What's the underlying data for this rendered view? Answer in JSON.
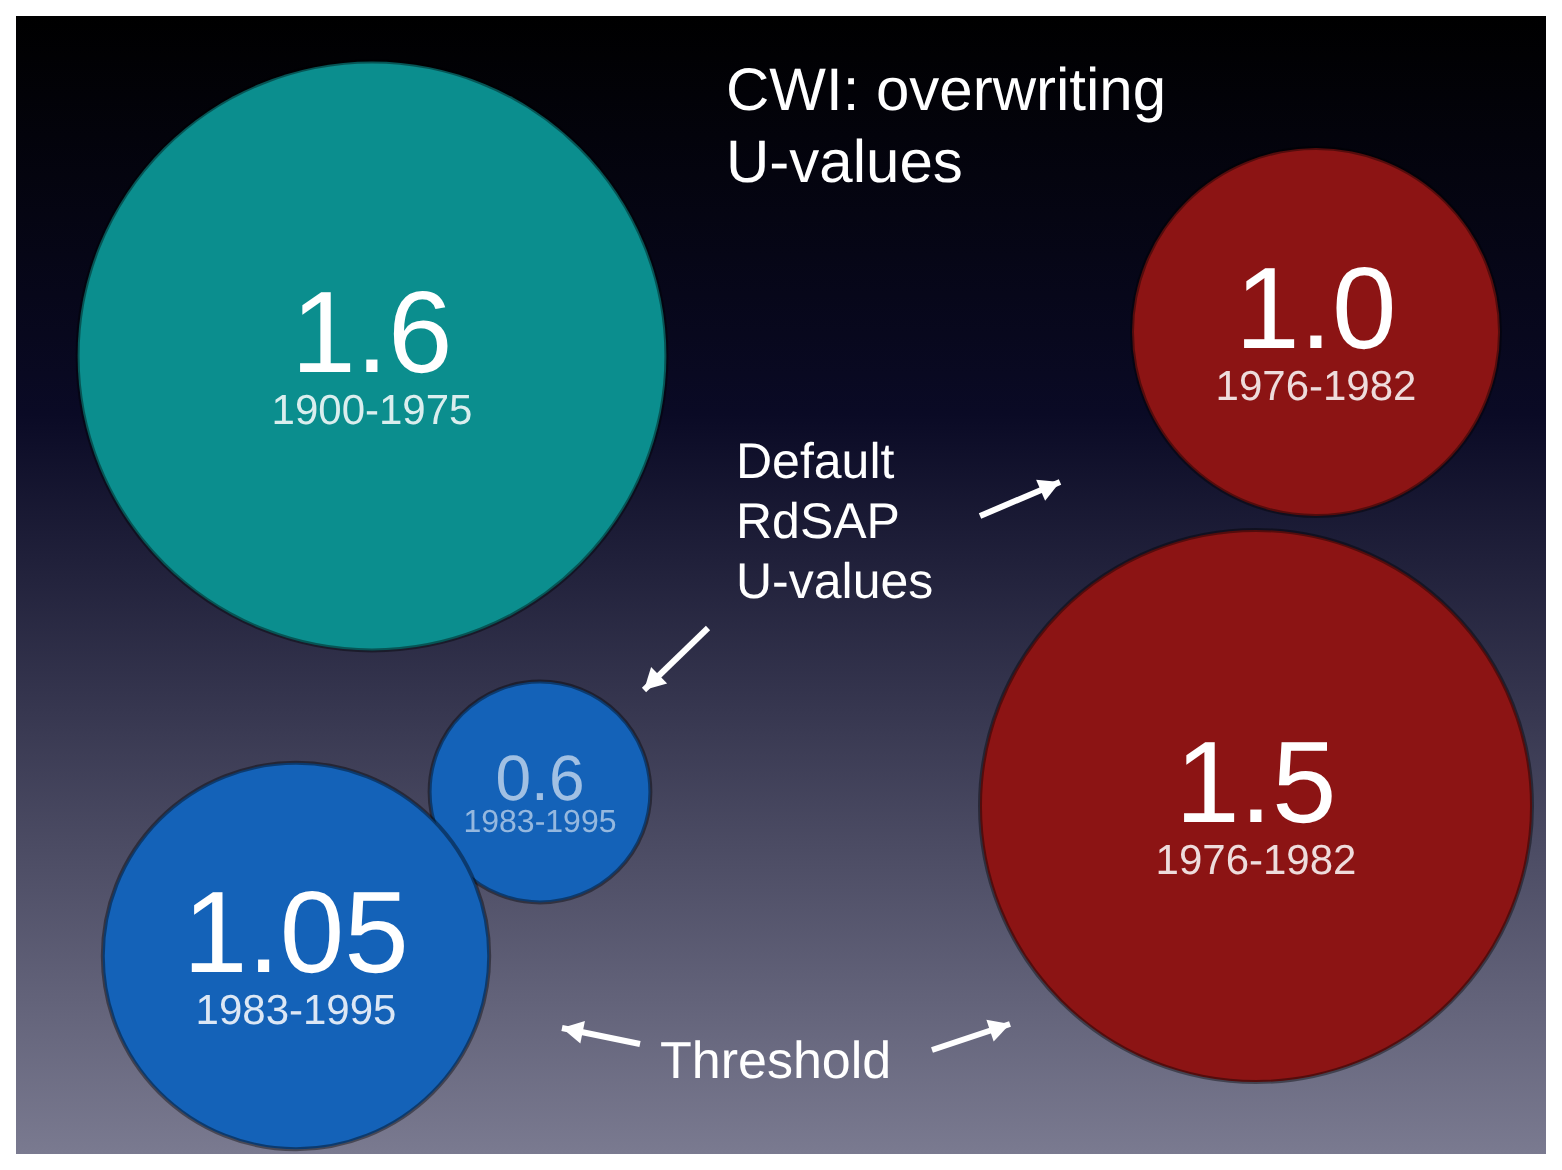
{
  "chart_data": {
    "type": "other",
    "title": "CWI: overwriting U-values",
    "categories": [
      "1900-1975",
      "1976-1982",
      "1976-1982",
      "1983-1995",
      "1983-1995"
    ],
    "values": [
      1.6,
      1.0,
      1.5,
      0.6,
      1.05
    ],
    "value_labels": [
      "1.6",
      "1.0",
      "1.5",
      "0.6",
      "1.05"
    ],
    "colors": [
      "#0b8e8e",
      "#8c1414",
      "#8c1414",
      "#1462b8",
      "#1462b8"
    ],
    "annotations": [
      "Default RdSAP U-values",
      "Threshold"
    ]
  }
}
